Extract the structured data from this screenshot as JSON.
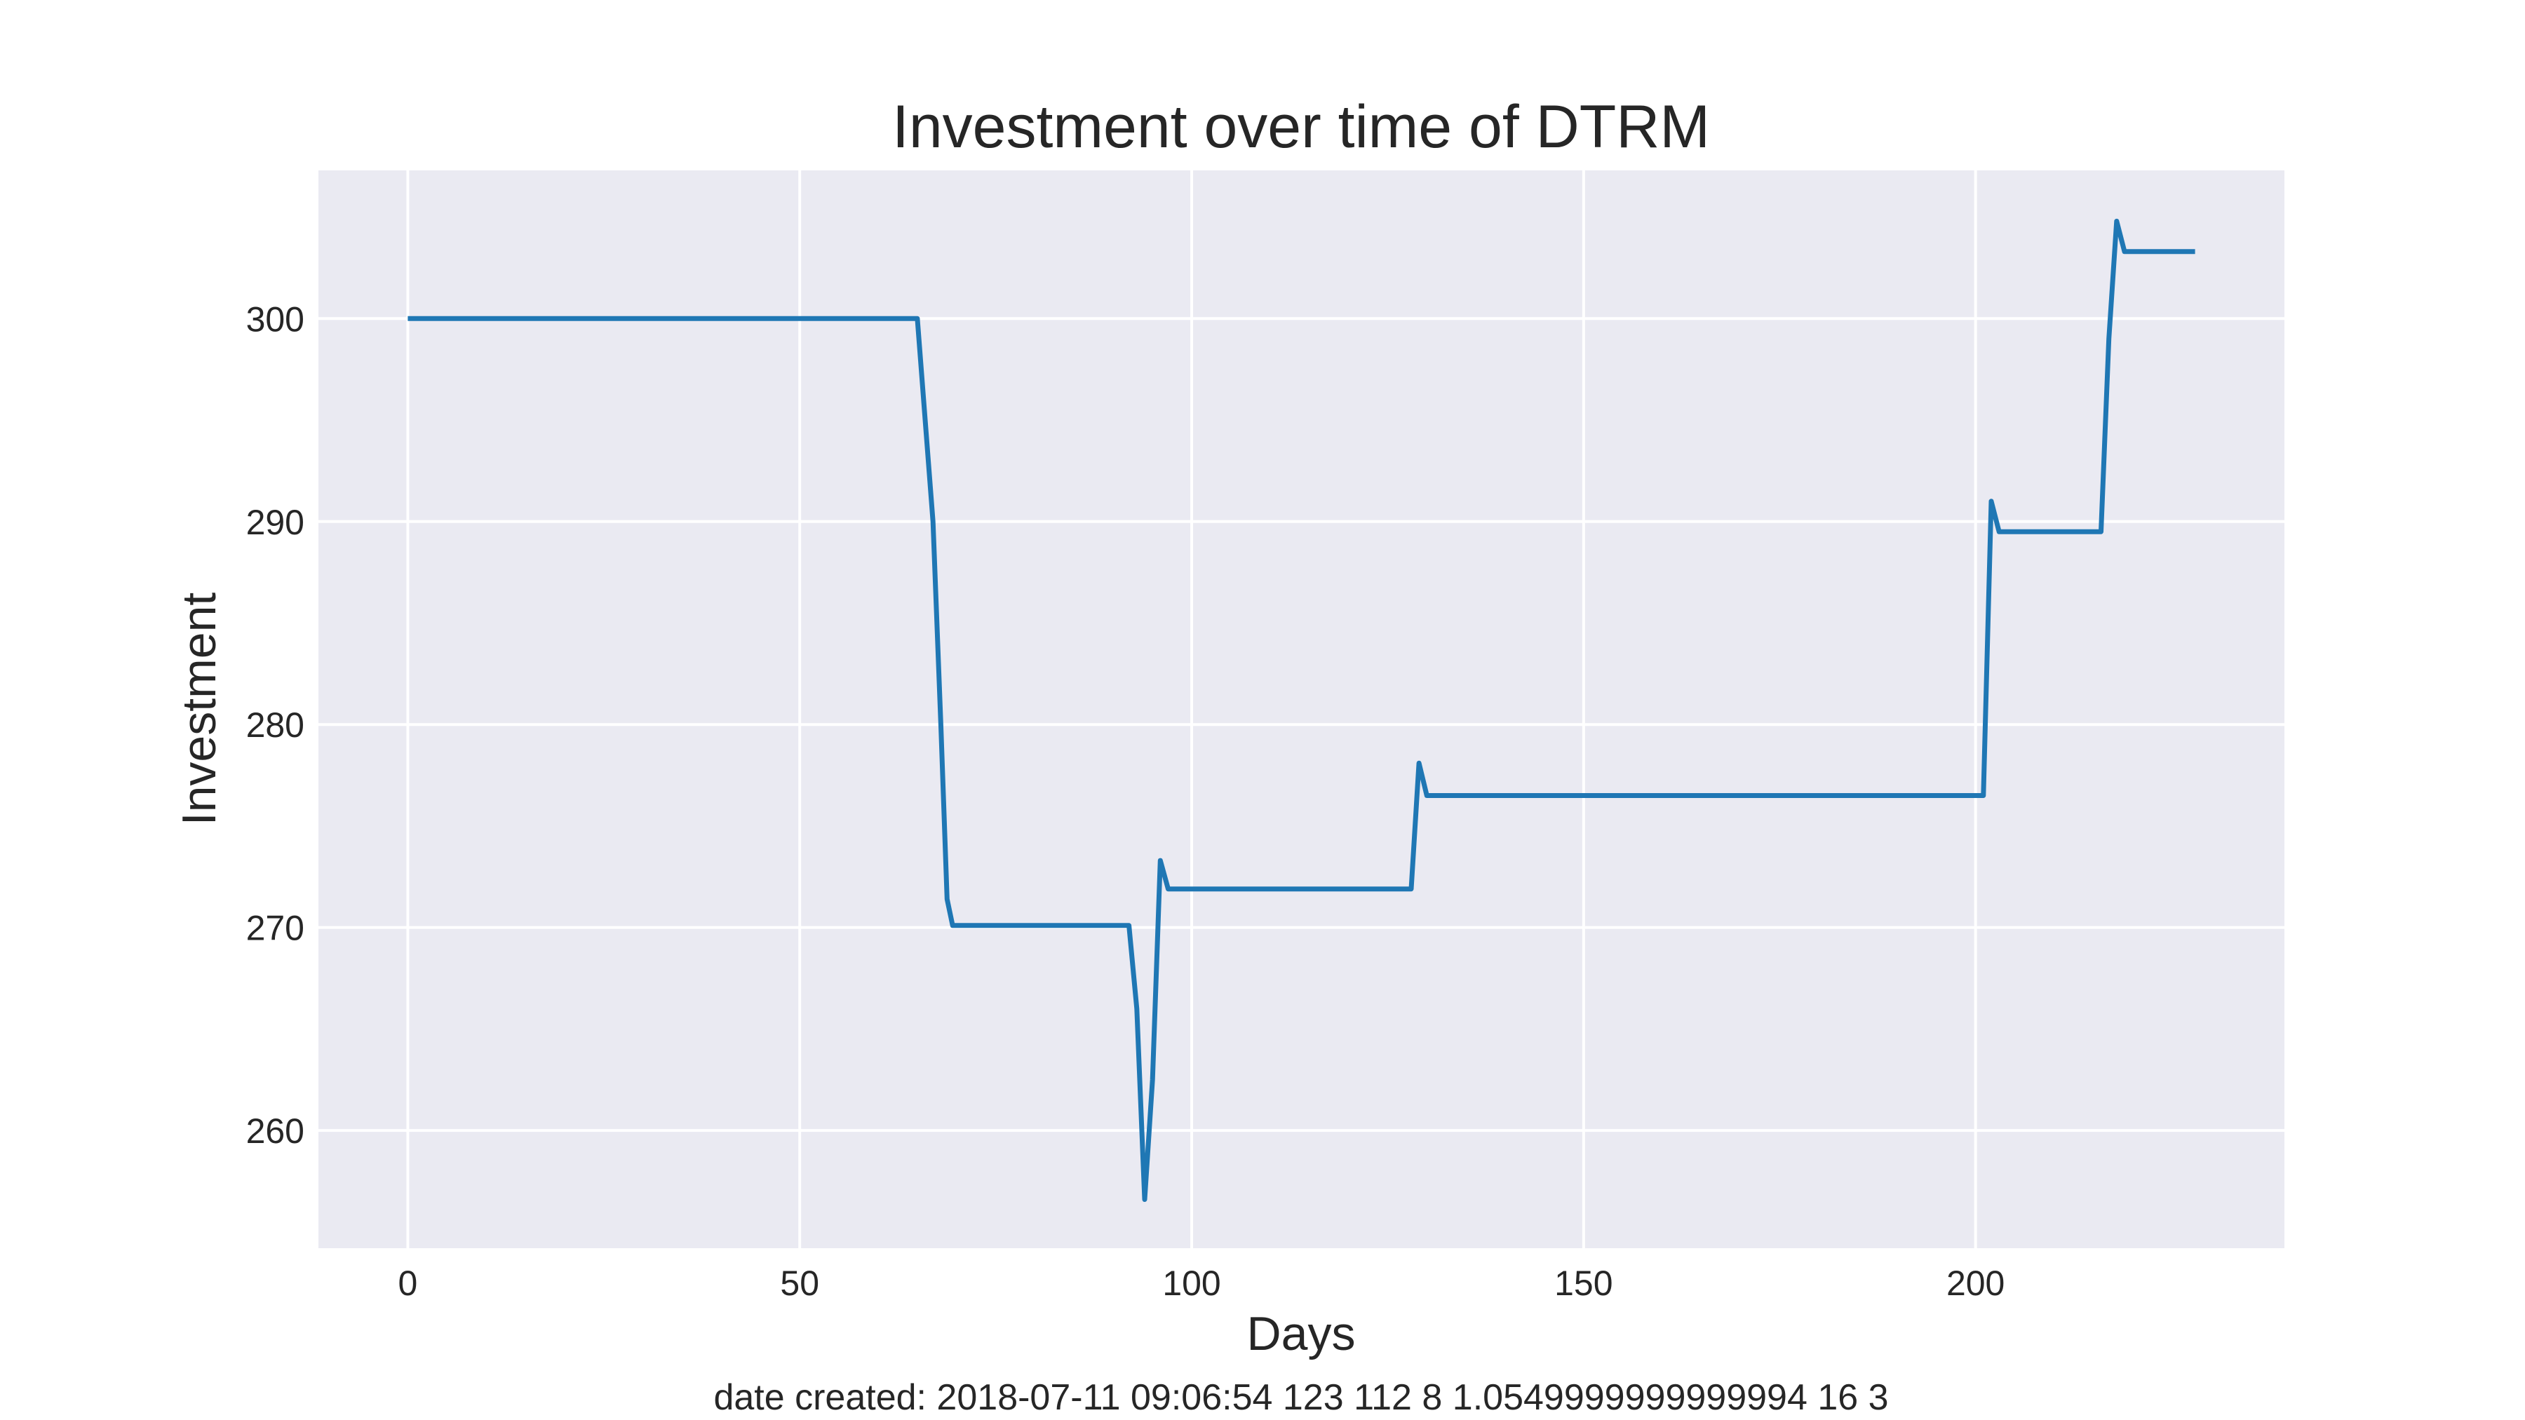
{
  "chart_data": {
    "type": "line",
    "title": "Investment over time of DTRM",
    "xlabel": "Days",
    "ylabel": "Investment",
    "caption": "date created: 2018-07-11 09:06:54 123 112 8 1.0549999999999994 16 3",
    "xlim": [
      -11.4,
      239.4
    ],
    "ylim": [
      254.2,
      307.3
    ],
    "xticks": [
      0,
      50,
      100,
      150,
      200
    ],
    "yticks": [
      260,
      270,
      280,
      290,
      300
    ],
    "grid": true,
    "legend": "none",
    "background_color": "#eaeaf2",
    "series": [
      {
        "color": "#1f77b4",
        "points": [
          [
            0,
            300
          ],
          [
            65,
            300
          ],
          [
            67,
            290
          ],
          [
            68,
            280
          ],
          [
            68.8,
            271.4
          ],
          [
            69.5,
            270.1
          ],
          [
            92,
            270.1
          ],
          [
            93,
            266
          ],
          [
            94,
            256.6
          ],
          [
            95,
            262.5
          ],
          [
            96,
            273.3
          ],
          [
            97,
            271.9
          ],
          [
            128,
            271.9
          ],
          [
            129,
            278.1
          ],
          [
            130,
            276.5
          ],
          [
            201,
            276.5
          ],
          [
            202,
            291
          ],
          [
            203,
            289.5
          ],
          [
            216,
            289.5
          ],
          [
            217,
            299
          ],
          [
            218,
            304.8
          ],
          [
            219,
            303.3
          ],
          [
            228,
            303.3
          ]
        ]
      }
    ]
  }
}
